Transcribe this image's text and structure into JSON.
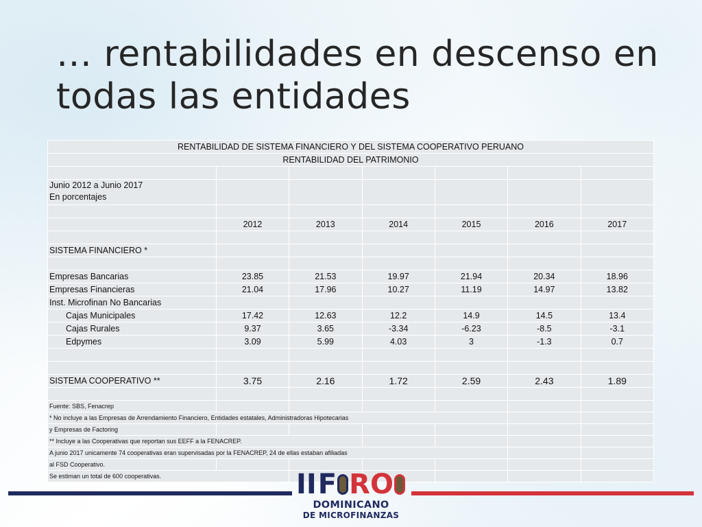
{
  "slide": {
    "title": "… rentabilidades en descenso en todas las entidades"
  },
  "table": {
    "header1": "RENTABILIDAD DE SISTEMA FINANCIERO  Y DEL SISTEMA COOPERATIVO PERUANO",
    "header2": "RENTABILIDAD DEL PATRIMONIO",
    "period": "Junio 2012 a Junio 2017",
    "units": "En porcentajes",
    "years": [
      "2012",
      "2013",
      "2014",
      "2015",
      "2016",
      "2017"
    ],
    "section_financiero": "SISTEMA FINANCIERO *",
    "rows": [
      {
        "label": "Empresas Bancarias",
        "values": [
          "23.85",
          "21.53",
          "19.97",
          "21.94",
          "20.34",
          "18.96"
        ]
      },
      {
        "label": "Empresas Financieras",
        "values": [
          "21.04",
          "17.96",
          "10.27",
          "11.19",
          "14.97",
          "13.82"
        ]
      },
      {
        "label": "Inst. Microfinan No Bancarias",
        "values": [
          "",
          "",
          "",
          "",
          "",
          ""
        ]
      },
      {
        "label": "Cajas Municipales",
        "values": [
          "17.42",
          "12.63",
          "12.2",
          "14.9",
          "14.5",
          "13.4"
        ]
      },
      {
        "label": "Cajas Rurales",
        "values": [
          "9.37",
          "3.65",
          "-3.34",
          "-6.23",
          "-8.5",
          "-3.1"
        ]
      },
      {
        "label": "Edpymes",
        "values": [
          "3.09",
          "5.99",
          "4.03",
          "3",
          "-1.3",
          "0.7"
        ]
      }
    ],
    "cooperativo": {
      "label": "SISTEMA COOPERATIVO **",
      "values": [
        "3.75",
        "2.16",
        "1.72",
        "2.59",
        "2.43",
        "1.89"
      ]
    },
    "notes": [
      "Fuente: SBS, Fenacrep",
      "* No incluye a las Empresas de Arrendamiento Financiero, Entidades estatales, Administradoras Hipotecarias",
      "y Empresas de Factoring",
      "** Incluye  a las Cooperativas que reportan sus EEFF a la FENACREP.",
      "A junio 2017 unicamente 74 cooperativas eran supervisadas por la FENACREP, 24 de ellas estaban afiliadas",
      "al FSD Cooperativo.",
      "Se estiman un total de 600 cooperativas."
    ]
  },
  "logo": {
    "roman": "II",
    "word_f": "F",
    "word_ro": "RO",
    "line1": "DOMINICANO",
    "line2": "DE MICROFINANZAS"
  },
  "colors": {
    "navy": "#1f2a5e",
    "red": "#d3343a",
    "shade": "#e6e9ec"
  }
}
